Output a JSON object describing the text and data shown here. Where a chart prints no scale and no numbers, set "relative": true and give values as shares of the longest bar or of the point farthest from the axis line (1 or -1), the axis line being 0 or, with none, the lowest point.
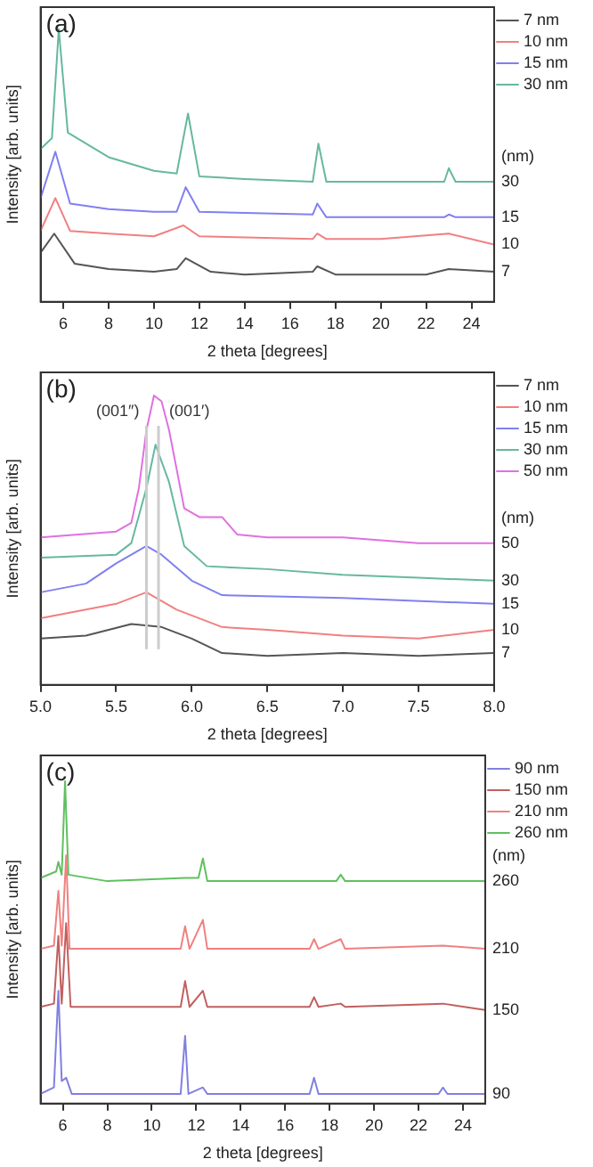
{
  "chart_data": [
    {
      "type": "line",
      "title": "(a)",
      "xlabel": "2 theta [degrees]",
      "ylabel": "Intensity [arb. units]",
      "relative": true,
      "xlim": [
        5,
        25
      ],
      "xticks": [
        6,
        8,
        10,
        12,
        14,
        16,
        18,
        20,
        22,
        24
      ],
      "legend": "right",
      "marker": "none",
      "series": [
        {
          "name": "7 nm",
          "color": "#555555",
          "x": [
            5,
            5.6,
            6.5,
            8,
            10,
            11,
            11.4,
            12.5,
            14,
            17,
            17.2,
            18,
            22,
            23,
            25
          ],
          "values": [
            0.18,
            0.25,
            0.14,
            0.12,
            0.11,
            0.12,
            0.16,
            0.11,
            0.1,
            0.11,
            0.13,
            0.1,
            0.1,
            0.12,
            0.11
          ]
        },
        {
          "name": "10 nm",
          "color": "#f08080",
          "x": [
            5,
            5.65,
            6.3,
            8,
            10,
            11.3,
            12,
            17,
            17.2,
            17.6,
            20,
            23,
            25
          ],
          "values": [
            0.26,
            0.38,
            0.26,
            0.25,
            0.24,
            0.28,
            0.24,
            0.23,
            0.25,
            0.23,
            0.23,
            0.25,
            0.21
          ]
        },
        {
          "name": "15 nm",
          "color": "#8080f0",
          "x": [
            5,
            5.65,
            6.3,
            8,
            10,
            11,
            11.4,
            12,
            17,
            17.2,
            17.6,
            22.8,
            23,
            23.3,
            25
          ],
          "values": [
            0.38,
            0.55,
            0.36,
            0.34,
            0.33,
            0.33,
            0.42,
            0.33,
            0.32,
            0.36,
            0.31,
            0.31,
            0.32,
            0.31,
            0.31
          ]
        },
        {
          "name": "30 nm",
          "color": "#66b8a0",
          "x": [
            5,
            5.5,
            5.8,
            6.2,
            8,
            10,
            11,
            11.5,
            12,
            14,
            17,
            17.25,
            17.6,
            20,
            22.8,
            23,
            23.3,
            25
          ],
          "values": [
            0.56,
            0.6,
            1.0,
            0.62,
            0.53,
            0.48,
            0.47,
            0.69,
            0.46,
            0.45,
            0.44,
            0.58,
            0.44,
            0.44,
            0.44,
            0.49,
            0.44,
            0.44
          ]
        }
      ],
      "annotations": [
        "(nm)",
        "30",
        "15",
        "10",
        "7"
      ]
    },
    {
      "type": "line",
      "title": "(b)",
      "xlabel": "2 theta [degrees]",
      "ylabel": "Intensity [arb. units]",
      "relative": true,
      "xlim": [
        5,
        8
      ],
      "xticks": [
        {
          "value": 5,
          "label": "5.0"
        },
        {
          "value": 5.5,
          "label": "5.5"
        },
        {
          "value": 6,
          "label": "6.0"
        },
        {
          "value": 6.5,
          "label": "6.5"
        },
        {
          "value": 7,
          "label": "7.0"
        },
        {
          "value": 7.5,
          "label": "7.5"
        },
        {
          "value": 8,
          "label": "8.0"
        }
      ],
      "legend": "right",
      "marker": "none",
      "series": [
        {
          "name": "7 nm",
          "color": "#555555",
          "x": [
            5,
            5.3,
            5.6,
            5.8,
            6,
            6.2,
            6.5,
            7,
            7.5,
            8
          ],
          "values": [
            0.16,
            0.17,
            0.21,
            0.2,
            0.16,
            0.11,
            0.1,
            0.11,
            0.1,
            0.11
          ]
        },
        {
          "name": "10 nm",
          "color": "#f08080",
          "x": [
            5,
            5.5,
            5.7,
            5.9,
            6.2,
            6.5,
            7,
            7.5,
            8
          ],
          "values": [
            0.23,
            0.28,
            0.32,
            0.26,
            0.2,
            0.19,
            0.17,
            0.16,
            0.19
          ]
        },
        {
          "name": "15 nm",
          "color": "#8080f0",
          "x": [
            5,
            5.3,
            5.5,
            5.7,
            5.8,
            6,
            6.2,
            7,
            8
          ],
          "values": [
            0.32,
            0.35,
            0.42,
            0.48,
            0.45,
            0.36,
            0.31,
            0.3,
            0.28
          ]
        },
        {
          "name": "30 nm",
          "color": "#66b8a0",
          "x": [
            5,
            5.5,
            5.6,
            5.7,
            5.76,
            5.85,
            5.95,
            6.1,
            6.5,
            7,
            7.5,
            8
          ],
          "values": [
            0.44,
            0.45,
            0.49,
            0.68,
            0.83,
            0.7,
            0.48,
            0.41,
            0.4,
            0.38,
            0.37,
            0.36
          ]
        },
        {
          "name": "50 nm",
          "color": "#e070e0",
          "x": [
            5,
            5.5,
            5.6,
            5.65,
            5.7,
            5.75,
            5.8,
            5.85,
            5.95,
            6.05,
            6.2,
            6.3,
            6.5,
            7,
            7.5,
            8
          ],
          "values": [
            0.51,
            0.53,
            0.56,
            0.68,
            0.88,
            1.0,
            0.98,
            0.88,
            0.61,
            0.58,
            0.58,
            0.52,
            0.51,
            0.51,
            0.49,
            0.49
          ]
        }
      ],
      "ref_lines": [
        {
          "axis": "x",
          "value": 5.7,
          "label": "(001″)",
          "color": "#cccccc"
        },
        {
          "axis": "x",
          "value": 5.78,
          "label": "(001′)",
          "color": "#cccccc"
        }
      ],
      "annotations": [
        "(nm)",
        "50",
        "30",
        "15",
        "10",
        "7"
      ]
    },
    {
      "type": "line",
      "title": "(c)",
      "xlabel": "2 theta [degrees]",
      "ylabel": "Intensity [arb. units]",
      "relative": true,
      "xlim": [
        5,
        25
      ],
      "xticks": [
        6,
        8,
        10,
        12,
        14,
        16,
        18,
        20,
        22,
        24
      ],
      "legend": "right",
      "marker": "none",
      "series": [
        {
          "name": "90 nm",
          "color": "#8080e0",
          "x": [
            5,
            5.6,
            5.8,
            5.95,
            6.15,
            6.4,
            11.3,
            11.5,
            11.65,
            12.3,
            12.5,
            17.1,
            17.3,
            17.5,
            22.9,
            23.1,
            23.3,
            25
          ],
          "values": [
            0.03,
            0.05,
            0.35,
            0.07,
            0.08,
            0.03,
            0.03,
            0.21,
            0.03,
            0.05,
            0.03,
            0.03,
            0.08,
            0.03,
            0.03,
            0.05,
            0.03,
            0.03
          ]
        },
        {
          "name": "150 nm",
          "color": "#c06060",
          "x": [
            5,
            5.6,
            5.8,
            5.95,
            6.15,
            6.35,
            11.3,
            11.5,
            11.7,
            12.3,
            12.5,
            17.1,
            17.3,
            17.5,
            18.5,
            18.7,
            23.1,
            25
          ],
          "values": [
            0.3,
            0.31,
            0.52,
            0.31,
            0.56,
            0.3,
            0.3,
            0.38,
            0.3,
            0.35,
            0.3,
            0.3,
            0.33,
            0.3,
            0.31,
            0.3,
            0.31,
            0.29
          ]
        },
        {
          "name": "210 nm",
          "color": "#f08080",
          "x": [
            5,
            5.6,
            5.8,
            5.95,
            6.15,
            6.3,
            11.3,
            11.5,
            11.7,
            12.3,
            12.5,
            17.1,
            17.3,
            17.5,
            18.5,
            18.7,
            23.1,
            25
          ],
          "values": [
            0.48,
            0.49,
            0.66,
            0.49,
            0.77,
            0.48,
            0.48,
            0.55,
            0.48,
            0.57,
            0.48,
            0.48,
            0.51,
            0.48,
            0.51,
            0.48,
            0.49,
            0.48
          ]
        },
        {
          "name": "260 nm",
          "color": "#60c060",
          "x": [
            5,
            5.7,
            5.8,
            5.95,
            6.1,
            6.25,
            8,
            11.5,
            12.1,
            12.3,
            12.5,
            18.3,
            18.5,
            18.7,
            25
          ],
          "values": [
            0.7,
            0.72,
            0.75,
            0.71,
            1.0,
            0.71,
            0.69,
            0.7,
            0.7,
            0.76,
            0.69,
            0.69,
            0.71,
            0.69,
            0.69
          ]
        }
      ],
      "annotations": [
        "(nm)",
        "260",
        "210",
        "150",
        "90"
      ]
    }
  ]
}
